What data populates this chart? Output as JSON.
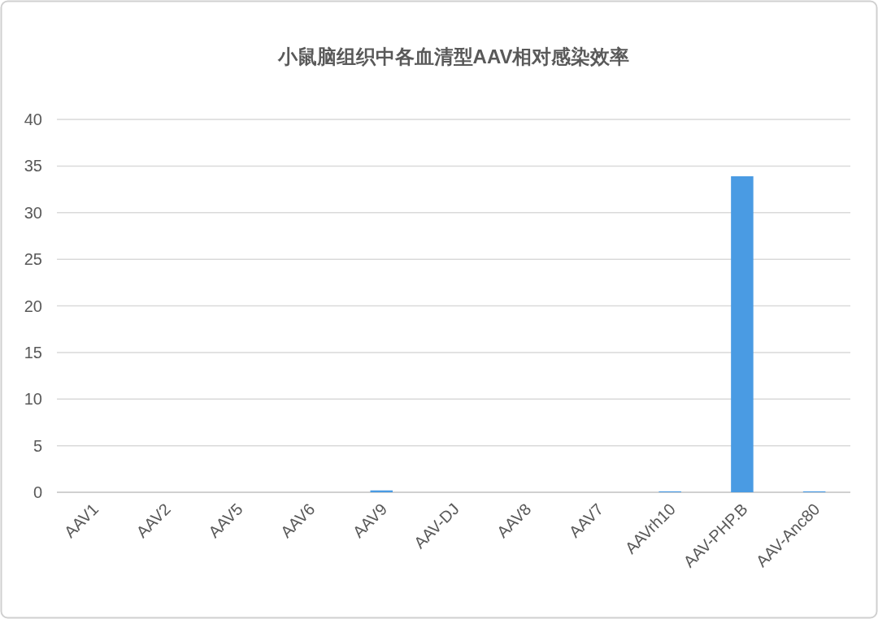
{
  "chart_data": {
    "type": "bar",
    "title": "小鼠脑组织中各血清型AAV相对感染效率",
    "categories": [
      "AAV1",
      "AAV2",
      "AAV5",
      "AAV6",
      "AAV9",
      "AAV-DJ",
      "AAV8",
      "AAV7",
      "AAVrh10",
      "AAV-PHP.B",
      "AAV-Anc80"
    ],
    "values": [
      0,
      0,
      0,
      0,
      0.2,
      0,
      0,
      0,
      0.1,
      33.9,
      0.1
    ],
    "color": "#4a9be3",
    "ylim": [
      0,
      40
    ],
    "yticks": [
      0,
      5,
      10,
      15,
      20,
      25,
      30,
      35,
      40
    ],
    "grid": "y"
  }
}
